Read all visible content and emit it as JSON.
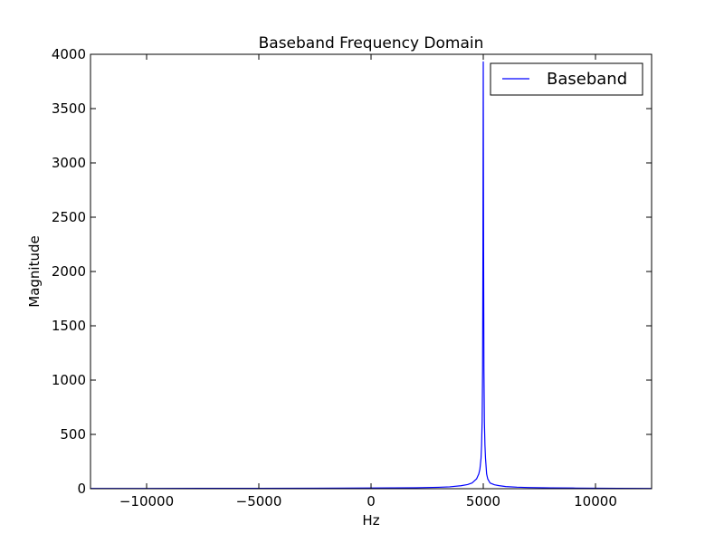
{
  "chart_data": {
    "type": "line",
    "title": "Baseband Frequency Domain",
    "xlabel": "Hz",
    "ylabel": "Magnitude",
    "xlim": [
      -12500,
      12500
    ],
    "ylim": [
      0,
      4000
    ],
    "xticks": [
      -10000,
      -5000,
      0,
      5000,
      10000
    ],
    "xtick_labels": [
      "−10000",
      "−5000",
      "0",
      "5000",
      "10000"
    ],
    "yticks": [
      0,
      500,
      1000,
      1500,
      2000,
      2500,
      3000,
      3500,
      4000
    ],
    "ytick_labels": [
      "0",
      "500",
      "1000",
      "1500",
      "2000",
      "2500",
      "3000",
      "3500",
      "4000"
    ],
    "grid": false,
    "legend_position": "top-right",
    "series": [
      {
        "name": "Baseband",
        "color": "#0000ff",
        "x": [
          -12500,
          -10000,
          -7500,
          -5000,
          -2500,
          0,
          1000,
          2000,
          3000,
          3500,
          4000,
          4300,
          4500,
          4700,
          4800,
          4850,
          4900,
          4925,
          4950,
          4970,
          4985,
          5000,
          5015,
          5030,
          5050,
          5075,
          5100,
          5150,
          5200,
          5300,
          5500,
          5700,
          6000,
          6500,
          7000,
          8000,
          9000,
          10000,
          11000,
          12500
        ],
        "y": [
          2,
          2,
          3,
          3,
          4,
          6,
          7,
          9,
          13,
          17,
          27,
          38,
          53,
          90,
          135,
          180,
          280,
          400,
          620,
          1100,
          2200,
          3930,
          2200,
          1100,
          620,
          400,
          280,
          135,
          90,
          53,
          36,
          28,
          20,
          14,
          11,
          8,
          6,
          4,
          3,
          2
        ]
      }
    ]
  }
}
